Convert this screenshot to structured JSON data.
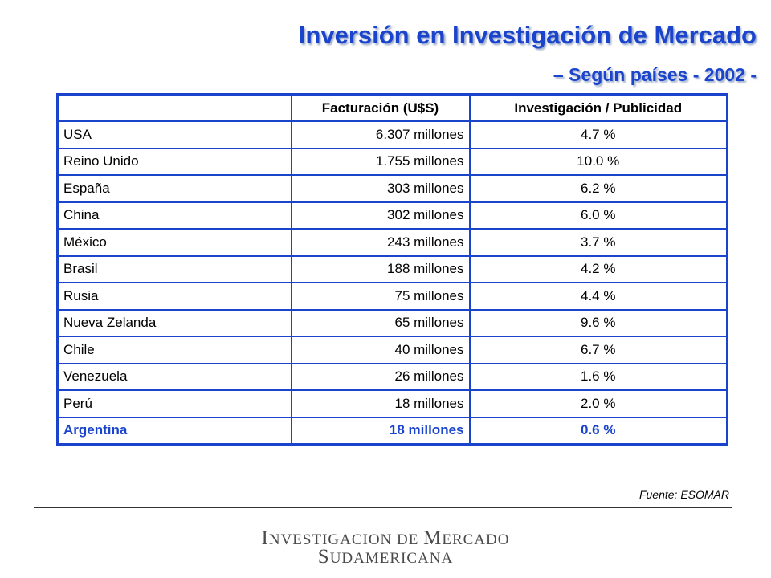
{
  "header": {
    "title": "Inversión en Investigación de Mercado",
    "subtitle": "– Según países - 2002 -"
  },
  "table": {
    "columns": [
      "",
      "Facturación (U$S)",
      "Investigación / Publicidad"
    ],
    "rows": [
      {
        "country": "USA",
        "billing": "6.307 millones",
        "ratio": "4.7 %"
      },
      {
        "country": "Reino Unido",
        "billing": "1.755 millones",
        "ratio": "10.0 %"
      },
      {
        "country": "España",
        "billing": "303 millones",
        "ratio": "6.2 %"
      },
      {
        "country": "China",
        "billing": "302 millones",
        "ratio": "6.0 %"
      },
      {
        "country": "México",
        "billing": "243 millones",
        "ratio": "3.7 %"
      },
      {
        "country": "Brasil",
        "billing": "188 millones",
        "ratio": "4.2 %"
      },
      {
        "country": "Rusia",
        "billing": "75 millones",
        "ratio": "4.4 %"
      },
      {
        "country": "Nueva Zelanda",
        "billing": "65 millones",
        "ratio": "9.6 %"
      },
      {
        "country": "Chile",
        "billing": "40 millones",
        "ratio": "6.7 %"
      },
      {
        "country": "Venezuela",
        "billing": "26 millones",
        "ratio": "1.6 %"
      },
      {
        "country": "Perú",
        "billing": "18 millones",
        "ratio": "2.0 %"
      },
      {
        "country": "Argentina",
        "billing": "18 millones",
        "ratio": "0.6 %"
      }
    ]
  },
  "source": "Fuente: ESOMAR",
  "logo": {
    "line1_a_initial": "I",
    "line1_a_rest": "NVESTIGACION DE ",
    "line1_b_initial": "M",
    "line1_b_rest": "ERCADO",
    "line2_initial": "S",
    "line2_rest": "UDAMERICANA"
  },
  "colors": {
    "accent": "#1a44cc",
    "text": "#000000",
    "logo": "#4a4a4a"
  }
}
